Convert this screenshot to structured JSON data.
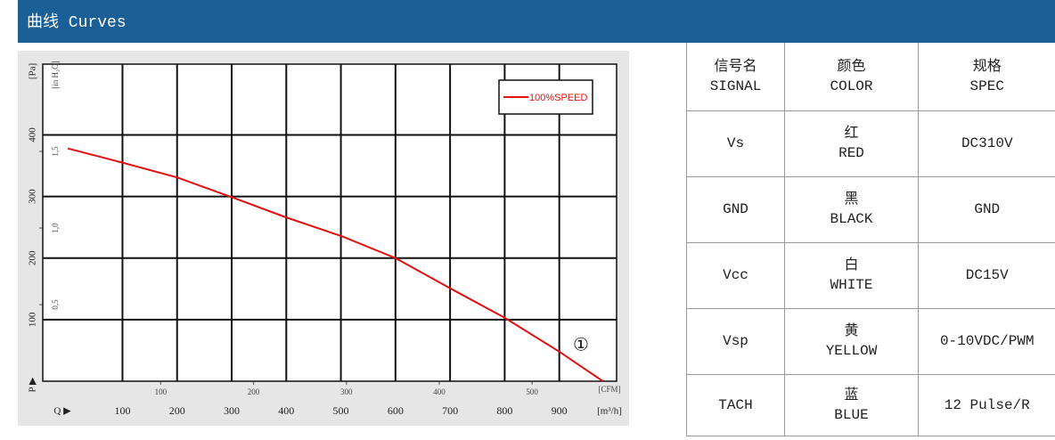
{
  "header": {
    "title": "曲线 Curves"
  },
  "chart_data": {
    "type": "line",
    "x_label": "[m³/h]",
    "x2_label": "[CFM]",
    "y_label": "[Pa]",
    "y2_label": "[in H₂O]",
    "x_axis_symbol": "Q ▶",
    "y_axis_symbol": "P ▶",
    "x": [
      0,
      100,
      200,
      300,
      400,
      500,
      600,
      700,
      800,
      900,
      980
    ],
    "series": [
      {
        "name": "100%SPEED",
        "color": "#e31010",
        "values": [
          378,
          355,
          331,
          299,
          266,
          236,
          200,
          151,
          103,
          48,
          0
        ]
      }
    ],
    "xlim": [
      -46,
      1005
    ],
    "xticks": [
      100,
      200,
      300,
      400,
      500,
      600,
      700,
      800,
      900
    ],
    "x2lim": [
      -27,
      591
    ],
    "x2ticks": [
      100,
      200,
      300,
      400,
      500
    ],
    "ylim": [
      0,
      515
    ],
    "yticks": [
      100,
      200,
      300,
      400
    ],
    "y2lim": [
      0,
      2.07
    ],
    "y2ticks": [
      {
        "value": 0.5,
        "label": "0,5"
      },
      {
        "value": 1.0,
        "label": "1,0"
      },
      {
        "value": 1.5,
        "label": "1,5"
      }
    ],
    "annotation": "①",
    "grid": true,
    "legend": "upper right"
  },
  "table": {
    "header": [
      [
        "信号名",
        "SIGNAL"
      ],
      [
        "颜色",
        "COLOR"
      ],
      [
        "规格",
        "SPEC"
      ]
    ],
    "rows": [
      [
        [
          "Vs"
        ],
        [
          "红",
          "RED"
        ],
        [
          "DC310V"
        ]
      ],
      [
        [
          "GND"
        ],
        [
          "黑",
          "BLACK"
        ],
        [
          "GND"
        ]
      ],
      [
        [
          "Vcc"
        ],
        [
          "白",
          "WHITE"
        ],
        [
          "DC15V"
        ]
      ],
      [
        [
          "Vsp"
        ],
        [
          "黄",
          "YELLOW"
        ],
        [
          "0-10VDC/PWM"
        ]
      ],
      [
        [
          "TACH"
        ],
        [
          "蓝",
          "BLUE"
        ],
        [
          "12 Pulse/R"
        ]
      ]
    ]
  }
}
